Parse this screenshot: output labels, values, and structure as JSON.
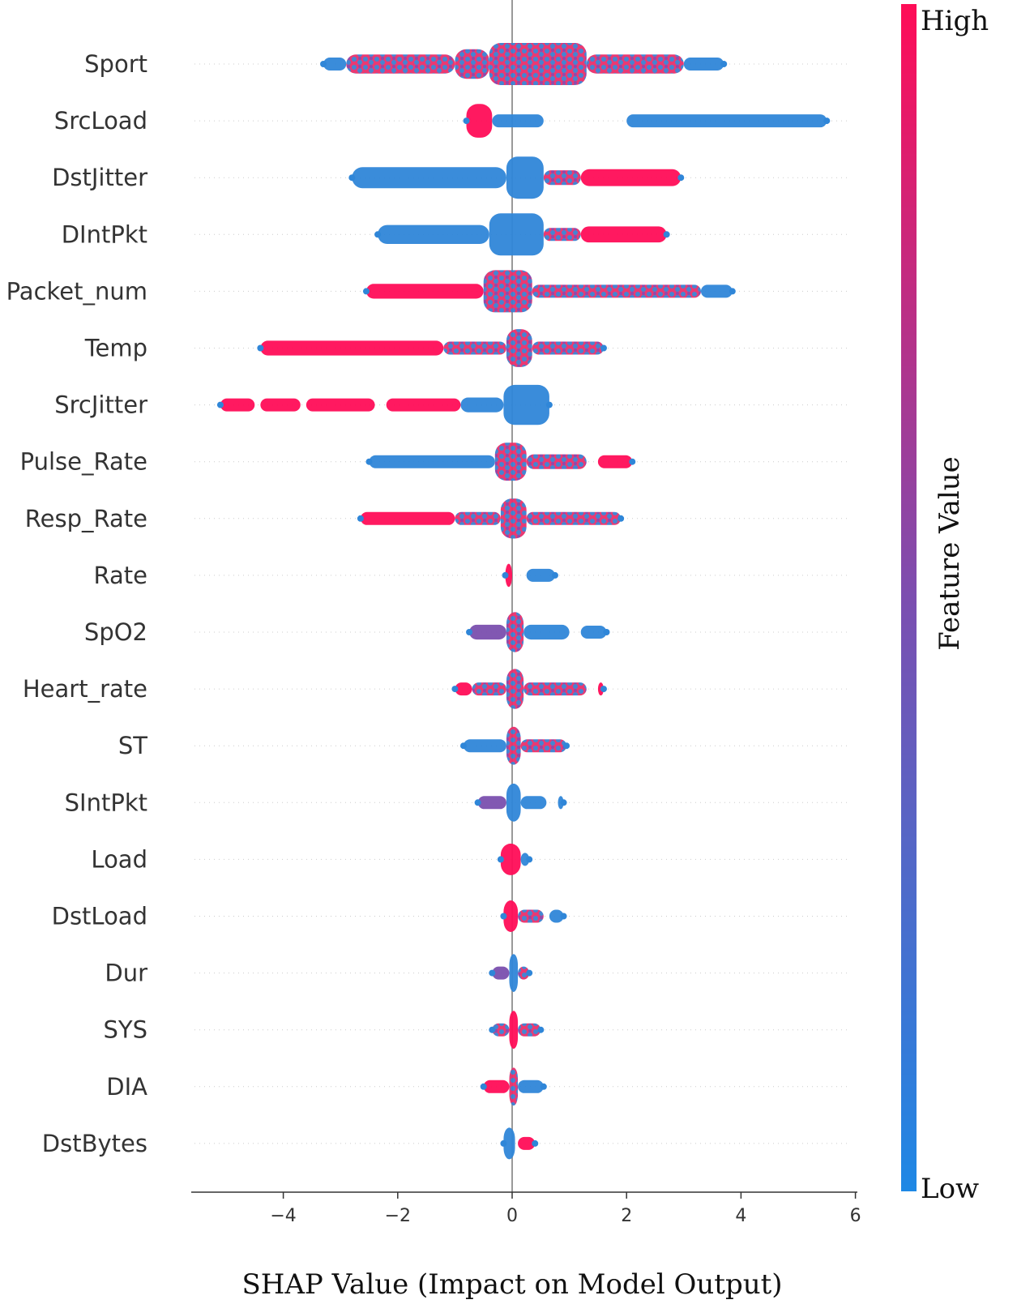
{
  "chart_data": {
    "type": "scatter",
    "subtype": "shap-beeswarm-summary",
    "title": "",
    "xlabel": "SHAP Value (Impact on Model Output)",
    "ylabel": "",
    "xlim": [
      -5.6,
      6.0
    ],
    "xticks": [
      -4,
      -2,
      0,
      2,
      4,
      6
    ],
    "xtick_labels": [
      "−4",
      "−2",
      "0",
      "2",
      "4",
      "6"
    ],
    "grid": false,
    "colorbar": {
      "label": "Feature Value",
      "high_label": "High",
      "low_label": "Low",
      "high_color": "#ff0d57",
      "low_color": "#1e88e5"
    },
    "features": [
      {
        "name": "Sport",
        "min": -3.3,
        "max": 3.7,
        "segments": [
          {
            "from": -3.3,
            "to": -2.9,
            "color": "low",
            "width": 0.25
          },
          {
            "from": -2.9,
            "to": -1.0,
            "color": "mix",
            "width": 0.45
          },
          {
            "from": -1.0,
            "to": -0.4,
            "color": "mix",
            "width": 0.7
          },
          {
            "from": -0.4,
            "to": 1.3,
            "color": "mix",
            "width": 1.0
          },
          {
            "from": 1.3,
            "to": 3.0,
            "color": "mix",
            "width": 0.45
          },
          {
            "from": 3.0,
            "to": 3.7,
            "color": "low",
            "width": 0.25
          }
        ]
      },
      {
        "name": "SrcLoad",
        "min": -0.8,
        "max": 5.5,
        "segments": [
          {
            "from": -0.8,
            "to": -0.35,
            "color": "high",
            "width": 0.8
          },
          {
            "from": -0.35,
            "to": 0.55,
            "color": "low",
            "width": 0.22
          },
          {
            "from": 2.0,
            "to": 5.5,
            "color": "low",
            "width": 0.28
          }
        ]
      },
      {
        "name": "DstJitter",
        "min": -2.8,
        "max": 2.95,
        "segments": [
          {
            "from": -2.8,
            "to": -0.1,
            "color": "low",
            "width": 0.5
          },
          {
            "from": -0.1,
            "to": 0.55,
            "color": "low",
            "width": 1.0
          },
          {
            "from": 0.55,
            "to": 1.2,
            "color": "mix",
            "width": 0.35
          },
          {
            "from": 1.2,
            "to": 2.95,
            "color": "high",
            "width": 0.4
          }
        ]
      },
      {
        "name": "DIntPkt",
        "min": -2.35,
        "max": 2.7,
        "segments": [
          {
            "from": -2.35,
            "to": -0.4,
            "color": "low",
            "width": 0.45
          },
          {
            "from": -0.4,
            "to": 0.55,
            "color": "low",
            "width": 1.0
          },
          {
            "from": 0.55,
            "to": 1.2,
            "color": "mix",
            "width": 0.3
          },
          {
            "from": 1.2,
            "to": 2.7,
            "color": "high",
            "width": 0.38
          }
        ]
      },
      {
        "name": "Packet_num",
        "min": -2.55,
        "max": 3.85,
        "segments": [
          {
            "from": -2.55,
            "to": -0.5,
            "color": "high",
            "width": 0.35
          },
          {
            "from": -0.5,
            "to": 0.35,
            "color": "mix",
            "width": 1.0
          },
          {
            "from": 0.35,
            "to": 3.3,
            "color": "mix",
            "width": 0.3
          },
          {
            "from": 3.3,
            "to": 3.85,
            "color": "low",
            "width": 0.2
          }
        ]
      },
      {
        "name": "Temp",
        "min": -4.4,
        "max": 1.6,
        "segments": [
          {
            "from": -4.4,
            "to": -1.2,
            "color": "high",
            "width": 0.35
          },
          {
            "from": -1.2,
            "to": -0.1,
            "color": "mix",
            "width": 0.3
          },
          {
            "from": -0.1,
            "to": 0.35,
            "color": "mix",
            "width": 0.9
          },
          {
            "from": 0.35,
            "to": 1.6,
            "color": "mix",
            "width": 0.3
          }
        ]
      },
      {
        "name": "SrcJitter",
        "min": -5.1,
        "max": 0.65,
        "segments": [
          {
            "from": -5.1,
            "to": -4.5,
            "color": "high",
            "width": 0.3
          },
          {
            "from": -4.4,
            "to": -3.7,
            "color": "high",
            "width": 0.3
          },
          {
            "from": -3.6,
            "to": -2.4,
            "color": "high",
            "width": 0.3
          },
          {
            "from": -2.2,
            "to": -0.9,
            "color": "high",
            "width": 0.3
          },
          {
            "from": -0.9,
            "to": -0.15,
            "color": "low",
            "width": 0.35
          },
          {
            "from": -0.15,
            "to": 0.65,
            "color": "low",
            "width": 0.95
          }
        ]
      },
      {
        "name": "Pulse_Rate",
        "min": -2.5,
        "max": 2.1,
        "segments": [
          {
            "from": -2.5,
            "to": -0.3,
            "color": "low",
            "width": 0.3
          },
          {
            "from": -0.3,
            "to": 0.25,
            "color": "mix",
            "width": 0.9
          },
          {
            "from": 0.25,
            "to": 1.3,
            "color": "mix",
            "width": 0.35
          },
          {
            "from": 1.5,
            "to": 2.1,
            "color": "high",
            "width": 0.25
          }
        ]
      },
      {
        "name": "Resp_Rate",
        "min": -2.65,
        "max": 1.9,
        "segments": [
          {
            "from": -2.65,
            "to": -1.0,
            "color": "high",
            "width": 0.3
          },
          {
            "from": -1.0,
            "to": -0.2,
            "color": "mix",
            "width": 0.3
          },
          {
            "from": -0.2,
            "to": 0.25,
            "color": "mix",
            "width": 0.95
          },
          {
            "from": 0.25,
            "to": 1.9,
            "color": "mix",
            "width": 0.25
          }
        ]
      },
      {
        "name": "Rate",
        "min": -0.12,
        "max": 0.75,
        "segments": [
          {
            "from": -0.12,
            "to": 0.0,
            "color": "high",
            "width": 0.55
          },
          {
            "from": 0.25,
            "to": 0.75,
            "color": "low",
            "width": 0.28
          }
        ]
      },
      {
        "name": "SpO2",
        "min": -0.75,
        "max": 1.65,
        "segments": [
          {
            "from": -0.75,
            "to": -0.1,
            "color": "purple",
            "width": 0.35
          },
          {
            "from": -0.1,
            "to": 0.2,
            "color": "mix",
            "width": 0.95
          },
          {
            "from": 0.2,
            "to": 1.0,
            "color": "low",
            "width": 0.35
          },
          {
            "from": 1.2,
            "to": 1.65,
            "color": "low",
            "width": 0.25
          }
        ]
      },
      {
        "name": "Heart_rate",
        "min": -1.0,
        "max": 1.6,
        "segments": [
          {
            "from": -1.0,
            "to": -0.7,
            "color": "high",
            "width": 0.3
          },
          {
            "from": -0.7,
            "to": -0.1,
            "color": "mix",
            "width": 0.3
          },
          {
            "from": -0.1,
            "to": 0.2,
            "color": "mix",
            "width": 0.95
          },
          {
            "from": 0.2,
            "to": 1.3,
            "color": "mix",
            "width": 0.3
          },
          {
            "from": 1.5,
            "to": 1.6,
            "color": "high",
            "width": 0.2
          }
        ]
      },
      {
        "name": "ST",
        "min": -0.85,
        "max": 0.95,
        "segments": [
          {
            "from": -0.85,
            "to": -0.1,
            "color": "low",
            "width": 0.3
          },
          {
            "from": -0.1,
            "to": 0.15,
            "color": "mix",
            "width": 0.9
          },
          {
            "from": 0.15,
            "to": 0.95,
            "color": "mix",
            "width": 0.3
          }
        ]
      },
      {
        "name": "SIntPkt",
        "min": -0.6,
        "max": 0.9,
        "segments": [
          {
            "from": -0.6,
            "to": -0.1,
            "color": "purple",
            "width": 0.3
          },
          {
            "from": -0.1,
            "to": 0.15,
            "color": "low",
            "width": 0.9
          },
          {
            "from": 0.15,
            "to": 0.6,
            "color": "low",
            "width": 0.25
          },
          {
            "from": 0.8,
            "to": 0.9,
            "color": "low",
            "width": 0.15
          }
        ]
      },
      {
        "name": "Load",
        "min": -0.2,
        "max": 0.3,
        "segments": [
          {
            "from": -0.2,
            "to": 0.15,
            "color": "high",
            "width": 0.75
          },
          {
            "from": 0.15,
            "to": 0.3,
            "color": "low",
            "width": 0.25
          }
        ]
      },
      {
        "name": "DstLoad",
        "min": -0.15,
        "max": 0.9,
        "segments": [
          {
            "from": -0.15,
            "to": 0.1,
            "color": "high",
            "width": 0.75
          },
          {
            "from": 0.1,
            "to": 0.55,
            "color": "mix",
            "width": 0.3
          },
          {
            "from": 0.65,
            "to": 0.9,
            "color": "low",
            "width": 0.25
          }
        ]
      },
      {
        "name": "Dur",
        "min": -0.35,
        "max": 0.3,
        "segments": [
          {
            "from": -0.35,
            "to": -0.05,
            "color": "purple",
            "width": 0.3
          },
          {
            "from": -0.05,
            "to": 0.1,
            "color": "low",
            "width": 0.9
          },
          {
            "from": 0.1,
            "to": 0.3,
            "color": "mix",
            "width": 0.25
          }
        ]
      },
      {
        "name": "SYS",
        "min": -0.35,
        "max": 0.5,
        "segments": [
          {
            "from": -0.35,
            "to": -0.05,
            "color": "mix",
            "width": 0.3
          },
          {
            "from": -0.05,
            "to": 0.1,
            "color": "high",
            "width": 0.9
          },
          {
            "from": 0.1,
            "to": 0.5,
            "color": "mix",
            "width": 0.3
          }
        ]
      },
      {
        "name": "DIA",
        "min": -0.5,
        "max": 0.55,
        "segments": [
          {
            "from": -0.5,
            "to": -0.05,
            "color": "high",
            "width": 0.3
          },
          {
            "from": -0.05,
            "to": 0.1,
            "color": "mix",
            "width": 0.9
          },
          {
            "from": 0.1,
            "to": 0.55,
            "color": "low",
            "width": 0.25
          }
        ]
      },
      {
        "name": "DstBytes",
        "min": -0.15,
        "max": 0.4,
        "segments": [
          {
            "from": -0.15,
            "to": 0.05,
            "color": "low",
            "width": 0.75
          },
          {
            "from": 0.1,
            "to": 0.4,
            "color": "high",
            "width": 0.25
          }
        ]
      }
    ]
  }
}
